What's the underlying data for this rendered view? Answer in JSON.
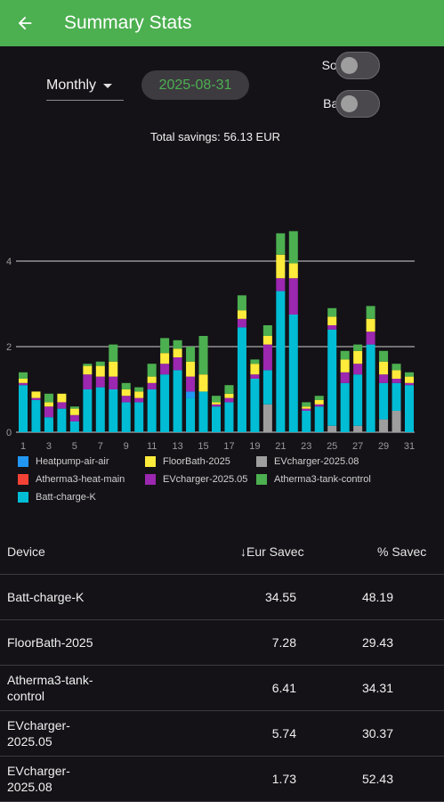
{
  "appbar": {
    "title": "Summary Stats"
  },
  "controls": {
    "period": "Monthly",
    "date": "2025-08-31",
    "toggle_solar": {
      "label": "Solar Pod.",
      "on": false
    },
    "toggle_batt": {
      "label": "Batt Sales",
      "on": false
    }
  },
  "summary": {
    "total_savings": "Total savings: 56.13 EUR"
  },
  "colors": {
    "appbar": "#4caf50",
    "background": "#141217",
    "Heatpump-air-air": "#2196f3",
    "Atherma3-heat-main": "#f44336",
    "Atherma3-tank-control": "#4caf50",
    "FloorBath-2025": "#ffeb3b",
    "EVcharger-2025.05": "#9c27b0",
    "Batt-charge-K": "#00bcd4",
    "EVcharger-2025.08": "#9e9e9e"
  },
  "chart_data": {
    "type": "bar",
    "stacked": true,
    "ylim": [
      0,
      5
    ],
    "yticks": [
      "0",
      "2",
      "4"
    ],
    "xtick_labels": [
      "1",
      "3",
      "5",
      "7",
      "9",
      "11",
      "13",
      "15",
      "17",
      "19",
      "21",
      "23",
      "25",
      "27",
      "29",
      "31"
    ],
    "categories": [
      1,
      2,
      3,
      4,
      5,
      6,
      7,
      8,
      9,
      10,
      11,
      12,
      13,
      14,
      15,
      16,
      17,
      18,
      19,
      20,
      21,
      22,
      23,
      24,
      25,
      26,
      27,
      28,
      29,
      30,
      31
    ],
    "grid": true,
    "legend_position": "bottom",
    "series": [
      {
        "name": "EVcharger-2025.08",
        "values": [
          0,
          0,
          0,
          0,
          0,
          0,
          0,
          0,
          0,
          0,
          0,
          0,
          0,
          0,
          0,
          0,
          0,
          0,
          0,
          0.65,
          0,
          0,
          0,
          0,
          0.15,
          0,
          0.15,
          0,
          0.3,
          0.5,
          0
        ]
      },
      {
        "name": "Batt-charge-K",
        "values": [
          1.1,
          0.75,
          0.35,
          0.55,
          0.25,
          1.0,
          1.05,
          1.0,
          0.7,
          0.7,
          1.0,
          1.35,
          1.45,
          0.8,
          0.95,
          0.6,
          0.7,
          2.45,
          1.25,
          0.8,
          3.3,
          2.75,
          0.5,
          0.6,
          2.25,
          1.15,
          1.2,
          2.05,
          0.85,
          0.65,
          1.1
        ]
      },
      {
        "name": "Heatpump-air-air",
        "values": [
          0,
          0,
          0,
          0,
          0,
          0,
          0,
          0,
          0,
          0,
          0,
          0,
          0,
          0.15,
          0,
          0,
          0,
          0,
          0,
          0,
          0,
          0,
          0,
          0,
          0,
          0,
          0,
          0,
          0,
          0,
          0
        ]
      },
      {
        "name": "Atherma3-heat-main",
        "values": [
          0,
          0,
          0,
          0,
          0,
          0,
          0,
          0,
          0,
          0,
          0,
          0,
          0,
          0,
          0,
          0,
          0,
          0,
          0,
          0,
          0,
          0,
          0,
          0,
          0,
          0,
          0,
          0,
          0,
          0,
          0
        ]
      },
      {
        "name": "EVcharger-2025.05",
        "values": [
          0.05,
          0.05,
          0.25,
          0.15,
          0.15,
          0.35,
          0.25,
          0.3,
          0.15,
          0.1,
          0.15,
          0.25,
          0.3,
          0.35,
          0,
          0.05,
          0.1,
          0.2,
          0.1,
          0.6,
          0.3,
          0.85,
          0.05,
          0.05,
          0.1,
          0.25,
          0.25,
          0.3,
          0.2,
          0.1,
          0.05
        ]
      },
      {
        "name": "FloorBath-2025",
        "values": [
          0.1,
          0.15,
          0.1,
          0.2,
          0.15,
          0.2,
          0.25,
          0.35,
          0.15,
          0.15,
          0.15,
          0.25,
          0.2,
          0.35,
          0.4,
          0.05,
          0.1,
          0.2,
          0.25,
          0.2,
          0.55,
          0.35,
          0.05,
          0.1,
          0.2,
          0.3,
          0.3,
          0.3,
          0.3,
          0.2,
          0.15
        ]
      },
      {
        "name": "Atherma3-tank-control",
        "values": [
          0.15,
          0,
          0.2,
          0,
          0.05,
          0.05,
          0.1,
          0.4,
          0.15,
          0.1,
          0.3,
          0.35,
          0.2,
          0.35,
          0.9,
          0.15,
          0.2,
          0.35,
          0.1,
          0.25,
          0.5,
          0.75,
          0.1,
          0.1,
          0.2,
          0.2,
          0.15,
          0.3,
          0.25,
          0.15,
          0.1
        ]
      }
    ],
    "legend": [
      "Heatpump-air-air",
      "FloorBath-2025",
      "EVcharger-2025.08",
      "Atherma3-heat-main",
      "EVcharger-2025.05",
      "Atherma3-tank-control",
      "Batt-charge-K"
    ]
  },
  "table": {
    "headers": {
      "device": "Device",
      "eur": "Eur Savec",
      "pct": "% Savec"
    },
    "rows": [
      {
        "device": "Batt-charge-K",
        "eur": "34.55",
        "pct": "48.19"
      },
      {
        "device": "FloorBath-2025",
        "eur": "7.28",
        "pct": "29.43"
      },
      {
        "device": "Atherma3-tank-control",
        "eur": "6.41",
        "pct": "34.31"
      },
      {
        "device": "EVcharger-2025.05",
        "eur": "5.74",
        "pct": "30.37"
      },
      {
        "device": "EVcharger-2025.08",
        "eur": "1.73",
        "pct": "52.43"
      }
    ]
  }
}
